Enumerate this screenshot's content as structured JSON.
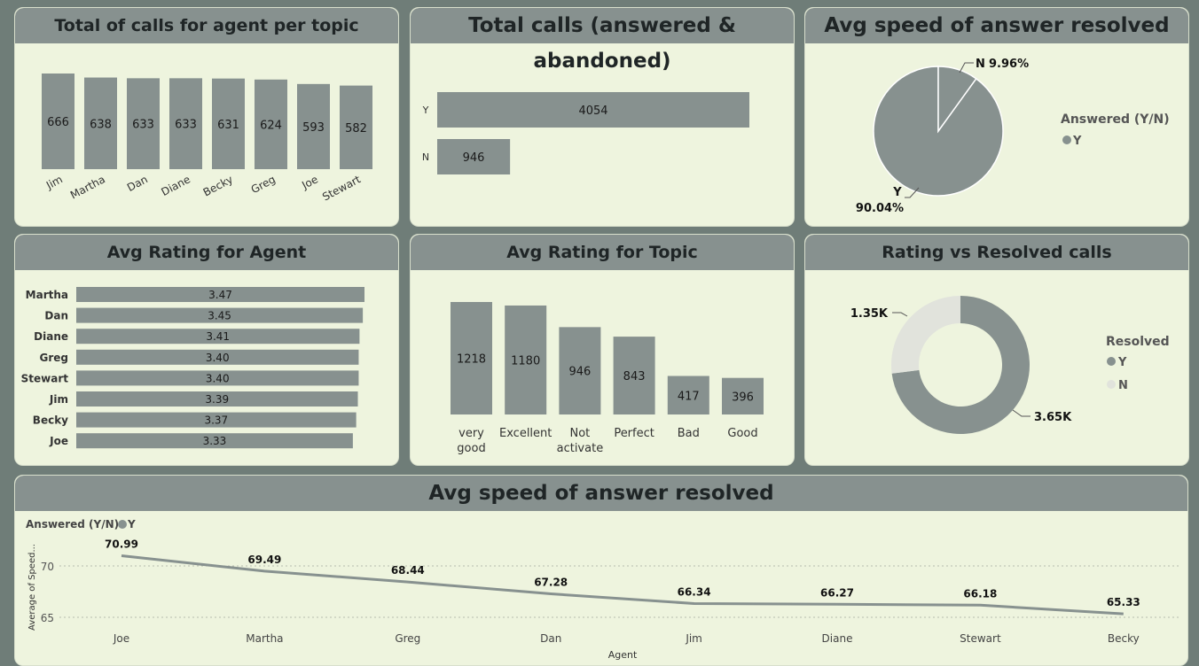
{
  "colors": {
    "background": "#6f7d78",
    "panel": "#eef4de",
    "header": "#87918f",
    "bar": "#87918f",
    "bar_light": "#e1e3dc",
    "text": "#1f2526"
  },
  "panels": {
    "p1_title": "Total of calls for agent per topic",
    "p2_title": "Total calls (answered & abandoned)",
    "p3_title": "Avg speed of answer resolved",
    "p4_title": "Avg Rating for Agent",
    "p5_title": "Avg Rating for Topic",
    "p6_title": "Rating vs Resolved calls",
    "p7_title": "Avg speed of answer resolved"
  },
  "chart_data": [
    {
      "id": "calls_per_agent",
      "type": "bar",
      "title": "Total of calls for agent per topic",
      "categories": [
        "Jim",
        "Martha",
        "Dan",
        "Diane",
        "Becky",
        "Greg",
        "Joe",
        "Stewart"
      ],
      "values": [
        666,
        638,
        633,
        633,
        631,
        624,
        593,
        582
      ],
      "data_labels": [
        "666",
        "638",
        "633",
        "633",
        "631",
        "624",
        "593",
        "582"
      ],
      "ylim": [
        0,
        666
      ]
    },
    {
      "id": "total_calls",
      "type": "bar",
      "orientation": "horizontal",
      "title": "Total calls (answered & abandoned)",
      "categories": [
        "Y",
        "N"
      ],
      "values": [
        4054,
        946
      ],
      "data_labels": [
        "4054",
        "946"
      ],
      "xlim": [
        0,
        4054
      ]
    },
    {
      "id": "speed_answer_pie",
      "type": "pie",
      "title": "Avg speed of answer resolved",
      "categories": [
        "Y",
        "N"
      ],
      "values": [
        90.04,
        9.96
      ],
      "data_labels": [
        "90.04%",
        "9.96%"
      ],
      "legend_title": "Answered (Y/N)",
      "legend_items": [
        "Y"
      ],
      "legend_position": "right"
    },
    {
      "id": "rating_agent",
      "type": "bar",
      "orientation": "horizontal",
      "title": "Avg Rating for Agent",
      "categories": [
        "Martha",
        "Dan",
        "Diane",
        "Greg",
        "Stewart",
        "Jim",
        "Becky",
        "Joe"
      ],
      "values": [
        3.47,
        3.45,
        3.41,
        3.4,
        3.4,
        3.39,
        3.37,
        3.33
      ],
      "data_labels": [
        "3.47",
        "3.45",
        "3.41",
        "3.40",
        "3.40",
        "3.39",
        "3.37",
        "3.33"
      ],
      "xlim": [
        0,
        3.47
      ]
    },
    {
      "id": "rating_topic",
      "type": "bar",
      "title": "Avg Rating for Topic",
      "categories": [
        [
          "very",
          "good"
        ],
        [
          "Excellent"
        ],
        [
          "Not",
          "activate"
        ],
        [
          "Perfect"
        ],
        [
          "Bad"
        ],
        [
          "Good"
        ]
      ],
      "values": [
        1218,
        1180,
        946,
        843,
        417,
        396
      ],
      "data_labels": [
        "1218",
        "1180",
        "946",
        "843",
        "417",
        "396"
      ],
      "ylim": [
        0,
        1218
      ]
    },
    {
      "id": "rating_resolved",
      "type": "pie",
      "variant": "donut",
      "title": "Rating vs Resolved calls",
      "categories": [
        "Y",
        "N"
      ],
      "values": [
        3650,
        1350
      ],
      "data_labels": [
        "3.65K",
        "1.35K"
      ],
      "legend_title": "Resolved",
      "legend_items": [
        "Y",
        "N"
      ],
      "legend_position": "right"
    },
    {
      "id": "speed_line",
      "type": "line",
      "title": "Avg speed of answer resolved",
      "x": [
        "Joe",
        "Martha",
        "Greg",
        "Dan",
        "Jim",
        "Diane",
        "Stewart",
        "Becky"
      ],
      "series": [
        {
          "name": "Y",
          "values": [
            70.99,
            69.49,
            68.44,
            67.28,
            66.34,
            66.27,
            66.18,
            65.33
          ]
        }
      ],
      "data_labels": [
        "70.99",
        "69.49",
        "68.44",
        "67.28",
        "66.34",
        "66.27",
        "66.18",
        "65.33"
      ],
      "legend_title": "Answered (Y/N)",
      "legend_items": [
        "Y"
      ],
      "legend_position": "top-left",
      "xlabel": "Agent",
      "ylabel": "Average of Speed...",
      "yticks": [
        "70",
        "65"
      ],
      "ylim": [
        64.5,
        71.5
      ],
      "grid": true
    }
  ]
}
